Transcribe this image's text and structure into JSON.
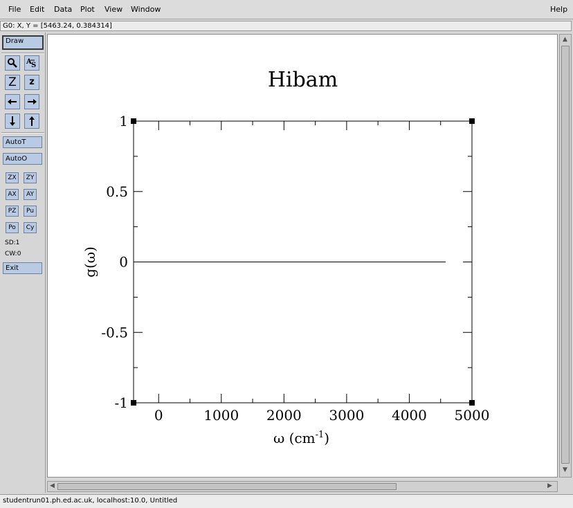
{
  "menubar": {
    "file": "File",
    "edit": "Edit",
    "data": "Data",
    "plot": "Plot",
    "view": "View",
    "window": "Window",
    "help": "Help"
  },
  "status": {
    "locator": "G0: X, Y = [5463.24, 0.384314]"
  },
  "toolbar": {
    "draw": "Draw",
    "zoom_in_label": "Z",
    "zoom_out_label": "z",
    "autot": "AutoT",
    "autoo": "AutoO",
    "zx": "ZX",
    "zy": "ZY",
    "ax": "AX",
    "ay": "AY",
    "pz": "PZ",
    "pu": "Pu",
    "po": "Po",
    "cy": "Cy",
    "sd": "SD:1",
    "cw": "CW:0",
    "exit": "Exit",
    "icons": {
      "zoom": "magnifier-icon",
      "autoscale": "as-icon",
      "left": "arrow-left-icon",
      "right": "arrow-right-icon",
      "down": "arrow-down-icon",
      "up": "arrow-up-icon"
    }
  },
  "bottom": {
    "text": "studentrun01.ph.ed.ac.uk, localhost:10.0, Untitled"
  },
  "chart_data": {
    "type": "line",
    "title": "Hibam",
    "xlabel": "ω (cm",
    "xlabel_sup": "-1",
    "xlabel_suffix": ")",
    "ylabel": "g(ω)",
    "xlim": [
      -400,
      5000
    ],
    "ylim": [
      -1,
      1
    ],
    "xticks": [
      0,
      1000,
      2000,
      3000,
      4000,
      5000
    ],
    "xtick_labels": [
      "0",
      "1000",
      "2000",
      "3000",
      "4000",
      "5000"
    ],
    "yticks": [
      -1,
      -0.5,
      0,
      0.5,
      1
    ],
    "ytick_labels": [
      "-1",
      "-0.5",
      "0",
      "0.5",
      "1"
    ],
    "x_minor_step": 500,
    "y_minor_step": 0.25,
    "grid": false,
    "series": [
      {
        "x": [
          -400,
          4580
        ],
        "y": [
          0,
          0
        ]
      }
    ]
  }
}
